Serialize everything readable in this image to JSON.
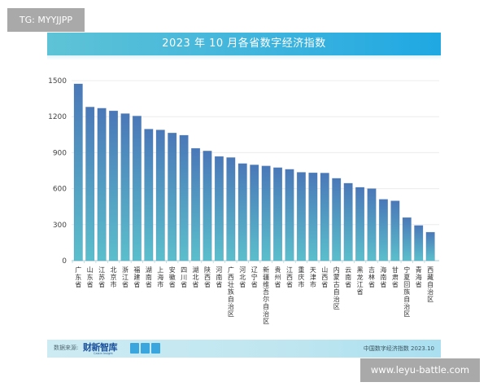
{
  "watermarks": {
    "top_left": "TG: MYYJJPP",
    "bottom_right": "www.leyu-battle.com"
  },
  "footer": {
    "source_label": "数据来源:",
    "brand_name": "财新智库",
    "brand_sub": "Caixin Insight",
    "right_note": "中国数字经济指数 2023.10"
  },
  "colors": {
    "bar_top": "#4a78b8",
    "bar_bottom": "#5bbfcc",
    "title_band_start": "#5ec3d6",
    "title_band_end": "#1fa8e3"
  },
  "chart_data": {
    "type": "bar",
    "title": "2023 年 10 月各省数字经济指数",
    "xlabel": "",
    "ylabel": "",
    "ylim": [
      0,
      1500
    ],
    "yticks": [
      0,
      300,
      600,
      900,
      1200,
      1500
    ],
    "grid": true,
    "legend": "none",
    "categories": [
      "广东省",
      "山东省",
      "江苏省",
      "北京市",
      "浙江省",
      "福建省",
      "湖南省",
      "上海市",
      "安徽省",
      "四川省",
      "湖北省",
      "陕西省",
      "河南省",
      "广西壮族自治区",
      "河北省",
      "辽宁省",
      "新疆维吾尔自治区",
      "贵州省",
      "江西省",
      "重庆市",
      "天津市",
      "山西省",
      "内蒙古自治区",
      "云南省",
      "黑龙江省",
      "吉林省",
      "海南省",
      "甘肃省",
      "宁夏回族自治区",
      "青海省",
      "西藏自治区"
    ],
    "values": [
      1473,
      1280,
      1270,
      1248,
      1225,
      1205,
      1096,
      1089,
      1064,
      1045,
      936,
      914,
      868,
      859,
      809,
      798,
      789,
      775,
      761,
      736,
      732,
      730,
      686,
      645,
      611,
      600,
      511,
      498,
      359,
      293,
      237
    ]
  }
}
